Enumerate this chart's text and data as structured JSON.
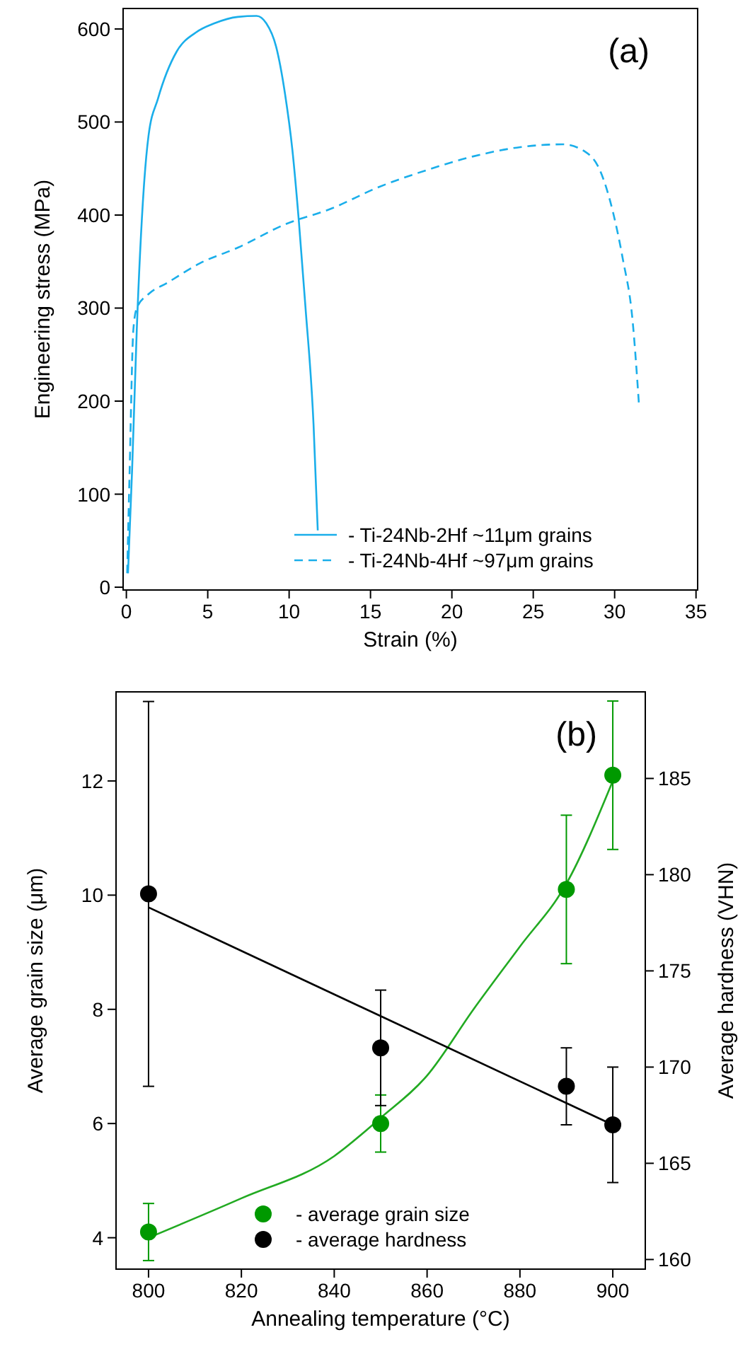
{
  "chart_data": [
    {
      "type": "line",
      "xlabel": "Strain (%)",
      "ylabel": "Engineering stress (MPa)",
      "annotations": [
        "(a)"
      ],
      "xlim": [
        -0.2,
        35.1
      ],
      "ylim": [
        -3,
        622
      ],
      "xticks": [
        0,
        5,
        10,
        15,
        20,
        25,
        30,
        35
      ],
      "yticks": [
        0,
        100,
        200,
        300,
        400,
        500,
        600
      ],
      "grid": false,
      "legend": "bottom right",
      "marker": "none",
      "series": [
        {
          "name": "- Ti-24Nb-2Hf ~11μm grains",
          "color": "#1aaeea",
          "line_style": "solid",
          "x": [
            0.1,
            0.35,
            0.64,
            1.07,
            1.36,
            1.94,
            3.1,
            4.25,
            5.4,
            6.85,
            8,
            8.6,
            9.2,
            9.75,
            10.2,
            10.6,
            11.0,
            11.5,
            11.76
          ],
          "values": [
            15,
            125,
            277,
            429,
            485,
            525,
            576,
            596,
            606,
            613,
            614,
            606,
            581,
            530,
            470,
            393,
            302,
            175,
            61
          ]
        },
        {
          "name": "- Ti-24Nb-4Hf ~97μm grains",
          "color": "#1aaeea",
          "line_style": "dashed",
          "x": [
            0.05,
            0.2,
            0.43,
            0.64,
            1.36,
            2.5,
            4.5,
            6.85,
            9.75,
            12.6,
            15.5,
            18.4,
            21.3,
            24.2,
            26.8,
            28.2,
            29.1,
            29.9,
            30.5,
            31.1,
            31.5
          ],
          "values": [
            15,
            125,
            277,
            300,
            315,
            327,
            348,
            365,
            390,
            407,
            430,
            448,
            463,
            473,
            476,
            468,
            448,
            403,
            353,
            287,
            195
          ]
        }
      ]
    },
    {
      "type": "scatter",
      "xlabel": "Annealing temperature (°C)",
      "ylabel": "Average grain size (μm)",
      "y2label": "Average hardness (VHN)",
      "annotations": [
        "(b)"
      ],
      "xlim": [
        793,
        907
      ],
      "ylim": [
        3.45,
        13.56
      ],
      "y2lim": [
        159.5,
        189.5
      ],
      "xticks": [
        800,
        820,
        840,
        860,
        880,
        900
      ],
      "yticks": [
        4,
        6,
        8,
        10,
        12
      ],
      "y2ticks": [
        160,
        165,
        170,
        175,
        180,
        185
      ],
      "grid": false,
      "legend": "bottom right",
      "series": [
        {
          "type": "line",
          "color": "#22aa22",
          "marker": "none",
          "line_style": "solid",
          "x": [
            800,
            820,
            840,
            850,
            860,
            870,
            880,
            890,
            900
          ],
          "values": [
            4.0,
            4.69,
            5.43,
            6.1,
            6.84,
            8.0,
            9.1,
            10.2,
            12.0
          ]
        },
        {
          "type": "line",
          "color": "#000000",
          "marker": "none",
          "line_style": "solid",
          "axis": "y2",
          "x": [
            800,
            900
          ],
          "values": [
            178.3,
            167.0
          ]
        },
        {
          "name": "- average grain size",
          "color": "#009900",
          "marker": "circle",
          "x": [
            800,
            850,
            890,
            900
          ],
          "values": [
            4.1,
            6.0,
            10.1,
            12.1
          ],
          "errors": [
            [
              3.6,
              4.6
            ],
            [
              5.5,
              6.5
            ],
            [
              8.8,
              11.4
            ],
            [
              10.8,
              13.4
            ]
          ]
        },
        {
          "name": "- average hardness",
          "color": "#000000",
          "marker": "circle",
          "axis": "y2",
          "x": [
            800,
            850,
            890,
            900
          ],
          "values": [
            179,
            171,
            169,
            167
          ],
          "errors": [
            [
              169,
              189
            ],
            [
              168,
              174
            ],
            [
              167,
              171
            ],
            [
              164,
              170
            ]
          ]
        }
      ]
    }
  ]
}
